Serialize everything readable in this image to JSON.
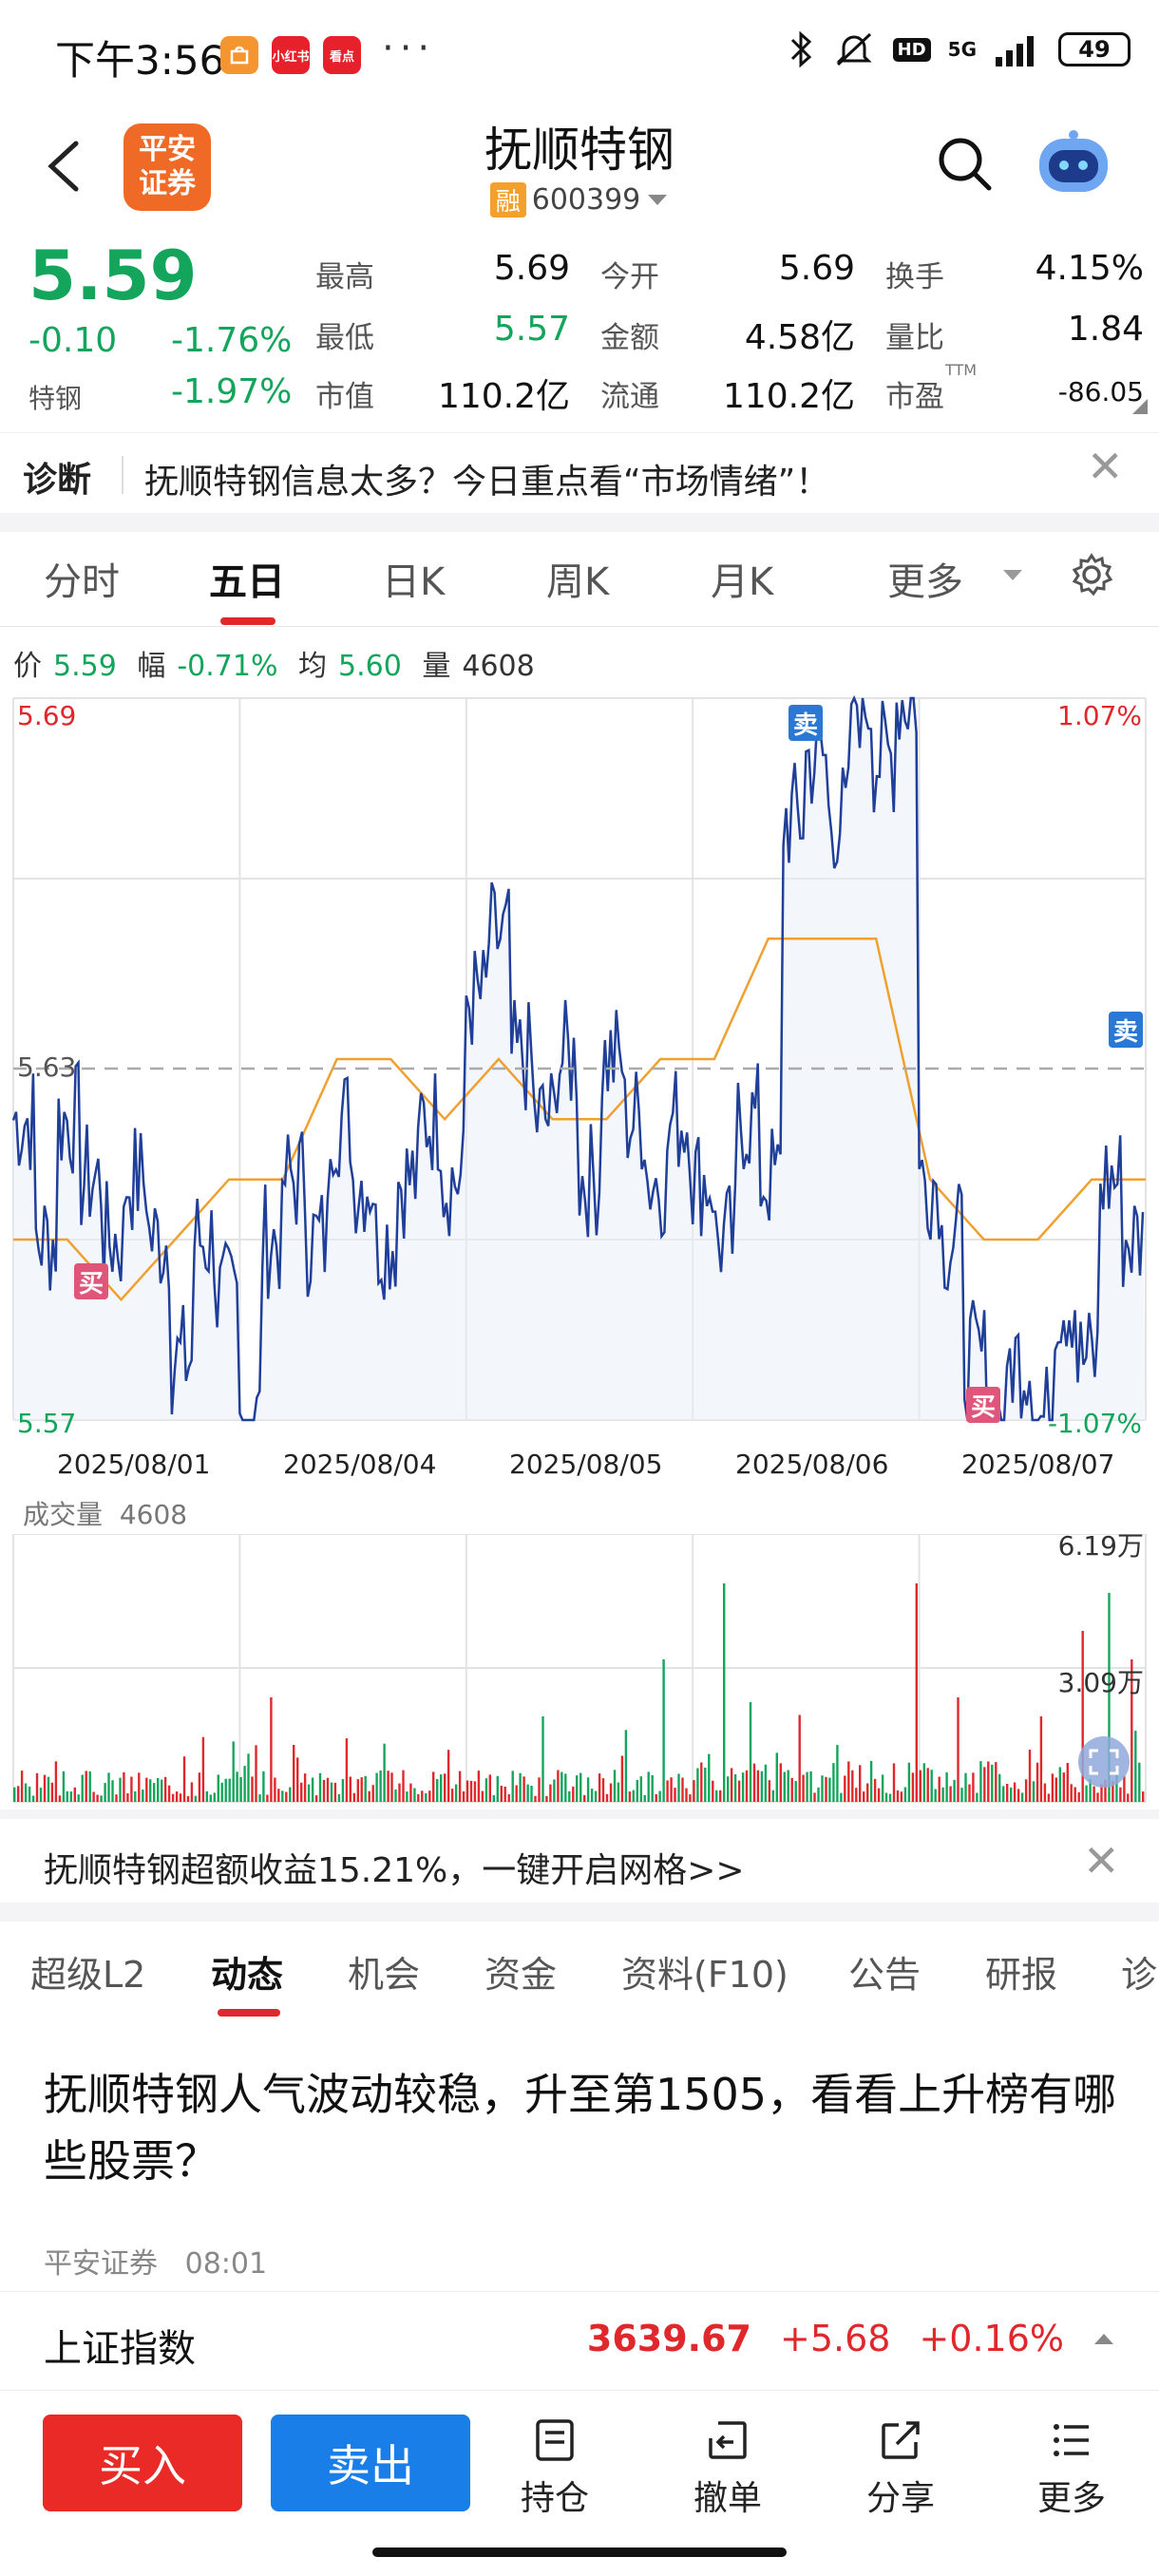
{
  "status": {
    "time": "下午3:56",
    "apps": [
      "小红书",
      "看点"
    ],
    "dots": "···",
    "network": "5G",
    "battery": "49"
  },
  "header": {
    "logo": "平安证券",
    "stock_name": "抚顺特钢",
    "rong": "融",
    "code": "600399"
  },
  "quote": {
    "price": "5.59",
    "change": "-0.10",
    "change_pct": "-1.76%",
    "sector": "特钢",
    "sector_pct": "-1.97%",
    "items": [
      {
        "label": "最高",
        "value": "5.69",
        "color": "#111111"
      },
      {
        "label": "今开",
        "value": "5.69",
        "color": "#111111"
      },
      {
        "label": "换手",
        "value": "4.15%",
        "color": "#111111"
      },
      {
        "label": "最低",
        "value": "5.57",
        "color": "#13a55b"
      },
      {
        "label": "金额",
        "value": "4.58亿",
        "color": "#111111"
      },
      {
        "label": "量比",
        "value": "1.84",
        "color": "#111111"
      },
      {
        "label": "市值",
        "value": "110.2亿",
        "color": "#111111"
      },
      {
        "label": "流通",
        "value": "110.2亿",
        "color": "#111111"
      },
      {
        "label": "市盈",
        "value": "-86.05",
        "color": "#111111"
      }
    ],
    "ttm": "TTM"
  },
  "diagnosis": {
    "label": "诊断",
    "text": "抚顺特钢信息太多？今日重点看“市场情绪”！"
  },
  "chart_tabs": [
    "分时",
    "五日",
    "日K",
    "周K",
    "月K",
    "更多"
  ],
  "chart_info": {
    "price_label": "价",
    "price": "5.59",
    "amp_label": "幅",
    "amp": "-0.71%",
    "avg_label": "均",
    "avg": "5.60",
    "vol_label": "量",
    "vol": "4608"
  },
  "chart_data": {
    "type": "line",
    "y_max_label": "5.69",
    "y_mid_label": "5.63",
    "y_min_label": "5.57",
    "pct_max_label": "1.07%",
    "pct_min_label": "-1.07%",
    "ylim": [
      5.57,
      5.69
    ],
    "dates": [
      "2025/08/01",
      "2025/08/04",
      "2025/08/05",
      "2025/08/06",
      "2025/08/07"
    ],
    "trade_marks": [
      {
        "label": "买",
        "day": 0
      },
      {
        "label": "卖",
        "day": 3
      },
      {
        "label": "买",
        "day": 4
      },
      {
        "label": "卖",
        "day": 4
      }
    ],
    "volume_title": "成交量",
    "volume_value": "4608",
    "volume_max_label": "6.19万",
    "volume_mid_label": "3.09万"
  },
  "banner": {
    "text": "抚顺特钢超额收益15.21%，一键开启网格>>"
  },
  "info_tabs": [
    "超级L2",
    "动态",
    "机会",
    "资金",
    "资料(F10)",
    "公告",
    "研报",
    "诊"
  ],
  "news": {
    "title": "抚顺特钢人气波动较稳，升至第1505，看看上升榜有哪些股票？",
    "source": "平安证券",
    "time": "08:01"
  },
  "index_bar": {
    "name": "上证指数",
    "value": "3639.67",
    "change": "+5.68",
    "pct": "+0.16%"
  },
  "bottom_nav": {
    "buy": "买入",
    "sell": "卖出",
    "items": [
      "持仓",
      "撤单",
      "分享",
      "更多"
    ]
  },
  "colors": {
    "up": "#e0282c",
    "down": "#13a55b",
    "line": "#1f3f99",
    "avg": "#f0a030"
  }
}
